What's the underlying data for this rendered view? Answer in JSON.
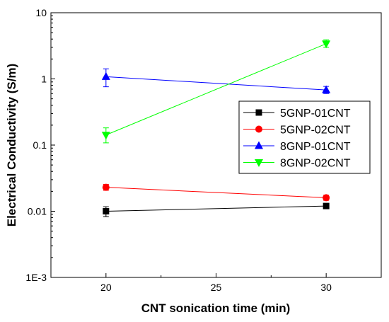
{
  "chart_data": {
    "type": "line",
    "xlabel": "CNT sonication time (min)",
    "ylabel": "Electrical Conductivity (S/m)",
    "xlim": [
      17.5,
      32.5
    ],
    "ylim": [
      0.001,
      10
    ],
    "yscale": "log",
    "grid": false,
    "legend_position": "right",
    "x_ticks": [
      {
        "value": 20,
        "label": "20"
      },
      {
        "value": 25,
        "label": "25"
      },
      {
        "value": 30,
        "label": "30"
      }
    ],
    "y_ticks": [
      {
        "value": 0.001,
        "label": "1E-3"
      },
      {
        "value": 0.01,
        "label": "0.01"
      },
      {
        "value": 0.1,
        "label": "0.1"
      },
      {
        "value": 1,
        "label": "1"
      },
      {
        "value": 10,
        "label": "10"
      }
    ],
    "x": [
      20,
      30
    ],
    "series": [
      {
        "name": "5GNP-01CNT",
        "values": [
          0.01,
          0.012
        ],
        "err_low": [
          0.0083,
          0.0114
        ],
        "err_high": [
          0.0117,
          0.0126
        ],
        "color": "#000000",
        "marker": "square"
      },
      {
        "name": "5GNP-02CNT",
        "values": [
          0.023,
          0.016
        ],
        "err_low": [
          0.0207,
          0.0146
        ],
        "err_high": [
          0.0255,
          0.0175
        ],
        "color": "#ff0000",
        "marker": "circle"
      },
      {
        "name": "8GNP-01CNT",
        "values": [
          1.08,
          0.68
        ],
        "err_low": [
          0.76,
          0.6
        ],
        "err_high": [
          1.42,
          0.77
        ],
        "color": "#0000ff",
        "marker": "triangle-up"
      },
      {
        "name": "8GNP-02CNT",
        "values": [
          0.142,
          3.4
        ],
        "err_low": [
          0.108,
          3.0
        ],
        "err_high": [
          0.182,
          3.9
        ],
        "color": "#00ff00",
        "marker": "triangle-down"
      }
    ]
  }
}
